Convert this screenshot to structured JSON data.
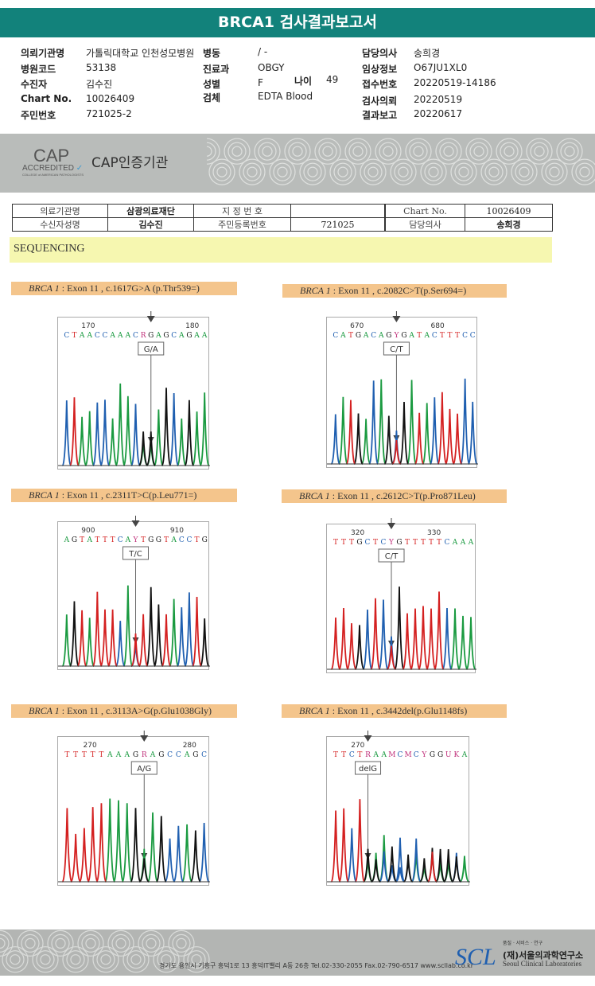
{
  "title": "BRCA1 검사결과보고서",
  "info": {
    "col1": [
      {
        "label": "의뢰기관명",
        "value": "가톨릭대학교 인천성모병원"
      },
      {
        "label": "병원코드",
        "value": "53138"
      },
      {
        "label": "수진자",
        "value": "김수진"
      },
      {
        "label": "Chart No.",
        "value": "10026409"
      },
      {
        "label": "주민번호",
        "value": "721025-2"
      }
    ],
    "col2": [
      {
        "label": "병동",
        "value": "/ -"
      },
      {
        "label": "진료과",
        "value": "OBGY"
      },
      {
        "label": "성별",
        "value": "F"
      },
      {
        "label": "검체",
        "value": "EDTA Blood"
      }
    ],
    "age": {
      "label": "나이",
      "value": "49"
    },
    "col3": [
      {
        "label": "담당의사",
        "value": "송희경"
      },
      {
        "label": "임상정보",
        "value": "O67JU1XL0"
      },
      {
        "label": "접수번호",
        "value": "20220519-14186"
      },
      {
        "label": "검사의뢰",
        "value": "20220519"
      },
      {
        "label": "결과보고",
        "value": "20220617"
      }
    ]
  },
  "cap": {
    "logo": "CAP ACCREDITED",
    "logo_sub": "COLLEGE of AMERICAN PATHOLOGISTS",
    "text": "CAP인증기관"
  },
  "patient_table": {
    "inst_label": "의료기관명",
    "inst": "삼광의료재단",
    "desig_label": "지 정 번 호",
    "desig": "",
    "chart_label": "Chart No.",
    "chart": "10026409",
    "name_label": "수신자성명",
    "name": "김수진",
    "rrn_label": "주민등록번호",
    "rrn": "721025",
    "doctor_label": "담당의사",
    "doctor": "송희경"
  },
  "section": "SEQUENCING",
  "variants": [
    {
      "gene": "BRCA 1",
      "desc": " : Exon 11 , c.1617G>A (p.Thr539=)",
      "call": "G/A",
      "seq": ".CTAACCAAACRGAGCAGAA",
      "ticks": [
        "170",
        "180"
      ]
    },
    {
      "gene": "BRCA 1",
      "desc": " : Exon 11 , c.2082C>T(p.Ser694=)",
      "call": "C/T",
      "seq": "CATGACAGYGATACTTTCC",
      "ticks": [
        "670",
        "680"
      ]
    },
    {
      "gene": "BRCA 1",
      "desc": " : Exon 11 , c.2311T>C(p.Leu771=)",
      "call": "T/C",
      "seq": "AGTATTTCAYTGGTACCTG",
      "ticks": [
        "900",
        "910"
      ]
    },
    {
      "gene": "BRCA 1",
      "desc": " : Exon 11 , c.2612C>T(p.Pro871Leu)",
      "call": "C/T",
      "seq": "TTTGCTCYGTTTTTCAAA",
      "ticks": [
        "320",
        "330"
      ]
    },
    {
      "gene": "BRCA 1",
      "desc": " : Exon 11 , c.3113A>G(p.Glu1038Gly)",
      "call": "A/G",
      "seq": "TTTTTAAAGRAGCCAGC",
      "ticks": [
        "270",
        "280"
      ]
    },
    {
      "gene": "BRCA 1",
      "desc": " : Exon 11 , c.3442del(p.Glu1148fs)",
      "call": "delG",
      "seq": "TTCTRAAMCMCYGGUKA",
      "ticks": [
        "270"
      ]
    }
  ],
  "footer": {
    "address": "경기도 용인시 기흥구 흥덕1로 13 흥덕IT밸리 A동 26층  Tel.02-330-2055  Fax.02-790-6517  www.scllab.co.kr",
    "logo": "SCL",
    "motto": "품질 · 서비스 · 연구",
    "org_ko": "(재)서울의과학연구소",
    "org_en": "Seoul Clinical Laboratories"
  },
  "colors": {
    "A": "#1a9a40",
    "C": "#1f5fb0",
    "G": "#111111",
    "T": "#d42020",
    "other": "#c0307a"
  }
}
